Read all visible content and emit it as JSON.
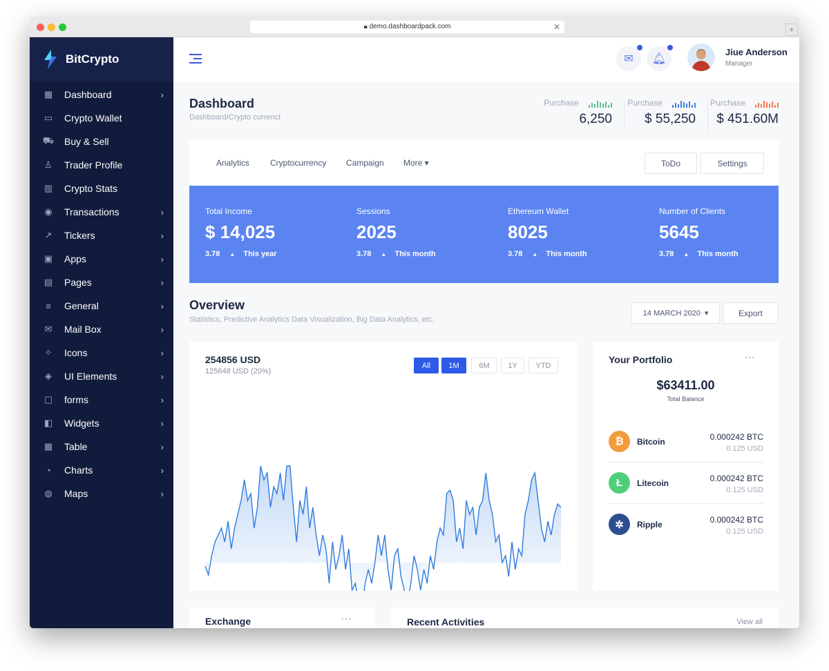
{
  "browser": {
    "url": "demo.dashboardpack.com"
  },
  "brand": {
    "name": "BitCrypto"
  },
  "sidebar": {
    "items": [
      {
        "label": "Dashboard",
        "icon": "grid-icon",
        "glyph": "▦",
        "chevron": true
      },
      {
        "label": "Crypto Wallet",
        "icon": "wallet-icon",
        "glyph": "▭",
        "chevron": false
      },
      {
        "label": "Buy & Sell",
        "icon": "cart-icon",
        "glyph": "⛟",
        "chevron": false
      },
      {
        "label": "Trader Profile",
        "icon": "user-icon",
        "glyph": "♙",
        "chevron": false
      },
      {
        "label": "Crypto Stats",
        "icon": "stats-icon",
        "glyph": "▥",
        "chevron": false
      },
      {
        "label": "Transactions",
        "icon": "eye-icon",
        "glyph": "◉",
        "chevron": true
      },
      {
        "label": "Tickers",
        "icon": "trend-icon",
        "glyph": "↗",
        "chevron": true
      },
      {
        "label": "Apps",
        "icon": "apps-icon",
        "glyph": "▣",
        "chevron": true
      },
      {
        "label": "Pages",
        "icon": "pages-icon",
        "glyph": "▤",
        "chevron": true
      },
      {
        "label": "General",
        "icon": "sliders-icon",
        "glyph": "≡",
        "chevron": true
      },
      {
        "label": "Mail Box",
        "icon": "mail-icon",
        "glyph": "✉",
        "chevron": true
      },
      {
        "label": "Icons",
        "icon": "sparkle-icon",
        "glyph": "✧",
        "chevron": true
      },
      {
        "label": "UI Elements",
        "icon": "layers-icon",
        "glyph": "◈",
        "chevron": true
      },
      {
        "label": "forms",
        "icon": "form-icon",
        "glyph": "▢",
        "chevron": true
      },
      {
        "label": "Widgets",
        "icon": "widget-icon",
        "glyph": "◧",
        "chevron": true
      },
      {
        "label": "Table",
        "icon": "table-icon",
        "glyph": "▦",
        "chevron": true
      },
      {
        "label": "Charts",
        "icon": "chart-icon",
        "glyph": "◔",
        "chevron": true
      },
      {
        "label": "Maps",
        "icon": "globe-icon",
        "glyph": "◍",
        "chevron": true
      }
    ]
  },
  "user": {
    "name": "Jiue Anderson",
    "role": "Manager"
  },
  "page": {
    "title": "Dashboard",
    "breadcrumb": "Dashboard/Crypto currenct"
  },
  "purchases": [
    {
      "label": "Purchase",
      "value": "6,250",
      "color": "#5fbf8f"
    },
    {
      "label": "Purchase",
      "value": "$ 55,250",
      "color": "#3d7fd6"
    },
    {
      "label": "Purchase",
      "value": "$ 451.60M",
      "color": "#f07a4a"
    }
  ],
  "tabs": {
    "items": [
      "Analytics",
      "Cryptocurrency",
      "Campaign",
      "More ▾"
    ],
    "todo": "ToDo",
    "settings": "Settings"
  },
  "kpis": [
    {
      "title": "Total Income",
      "value": "$ 14,025",
      "change": "3.78",
      "period": "This year"
    },
    {
      "title": "Sessions",
      "value": "2025",
      "change": "3.78",
      "period": "This month"
    },
    {
      "title": "Ethereum Wallet",
      "value": "8025",
      "change": "3.78",
      "period": "This month"
    },
    {
      "title": "Number of Clients",
      "value": "5645",
      "change": "3.78",
      "period": "This month"
    }
  ],
  "overview": {
    "title": "Overview",
    "subtitle": "Statistics, Predictive Analytics Data Visualization, Big Data Analytics, etc.",
    "date": "14 MARCH 2020",
    "export": "Export"
  },
  "chart": {
    "value": "254856 USD",
    "sub": "125648 USD (20%)",
    "ranges": [
      "All",
      "1M",
      "6M",
      "1Y",
      "YTD"
    ],
    "active": [
      "All",
      "1M"
    ],
    "color": "#2f7be0",
    "values": [
      75,
      62,
      90,
      110,
      120,
      130,
      110,
      140,
      100,
      130,
      150,
      170,
      200,
      170,
      180,
      130,
      160,
      220,
      200,
      210,
      160,
      190,
      180,
      210,
      170,
      220,
      220,
      160,
      110,
      170,
      150,
      190,
      130,
      160,
      120,
      90,
      120,
      100,
      50,
      110,
      70,
      90,
      120,
      70,
      100,
      40,
      50,
      20,
      10,
      50,
      70,
      50,
      80,
      120,
      90,
      120,
      70,
      40,
      90,
      100,
      60,
      40,
      20,
      50,
      90,
      70,
      40,
      70,
      50,
      90,
      70,
      110,
      130,
      120,
      180,
      185,
      170,
      110,
      130,
      100,
      170,
      150,
      160,
      120,
      160,
      170,
      210,
      170,
      150,
      110,
      120,
      80,
      90,
      60,
      110,
      70,
      100,
      90,
      150,
      170,
      200,
      210,
      170,
      130,
      110,
      140,
      120,
      150,
      165,
      160
    ]
  },
  "portfolio": {
    "title": "Your Portfolio",
    "balance": "$63411.00",
    "balance_label": "Total Balance",
    "coins": [
      {
        "name": "Bitcoin",
        "btc": "0.000242 BTC",
        "usd": "0.125 USD",
        "color": "#f39c3d",
        "glyph": "₿",
        "icon": "bitcoin-icon"
      },
      {
        "name": "Litecoin",
        "btc": "0.000242 BTC",
        "usd": "0.125 USD",
        "color": "#4fce7a",
        "glyph": "Ł",
        "icon": "litecoin-icon"
      },
      {
        "name": "Ripple",
        "btc": "0.000242 BTC",
        "usd": "0.125 USD",
        "color": "#2d4f8f",
        "glyph": "✲",
        "icon": "ripple-icon"
      }
    ]
  },
  "exchange": {
    "title": "Exchange"
  },
  "activities": {
    "title": "Recent Activities",
    "view_all": "View all"
  }
}
